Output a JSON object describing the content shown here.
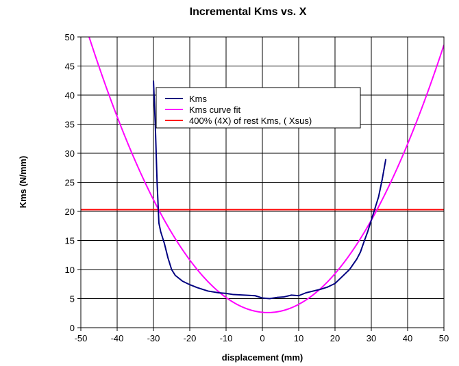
{
  "chart_data": {
    "type": "line",
    "title": "Incremental Kms vs. X",
    "xlabel": "displacement (mm)",
    "ylabel": "Kms (N/mm)",
    "xlim": [
      -50,
      50
    ],
    "ylim": [
      0,
      50
    ],
    "x_ticks": [
      "-50",
      "-40",
      "-30",
      "-20",
      "-10",
      "0",
      "10",
      "20",
      "30",
      "40",
      "50"
    ],
    "y_ticks": [
      "0",
      "5",
      "10",
      "15",
      "20",
      "25",
      "30",
      "35",
      "40",
      "45",
      "50"
    ],
    "grid": true,
    "legend_position": "top-center",
    "colors": {
      "kms": "#000080",
      "fit": "#ff00ff",
      "limit": "#ff0000",
      "grid": "#000000"
    },
    "series": [
      {
        "name": "Kms",
        "color": "#000080",
        "points": [
          [
            -30,
            42.5
          ],
          [
            -29.5,
            35
          ],
          [
            -29,
            25
          ],
          [
            -28.5,
            18
          ],
          [
            -28,
            16.5
          ],
          [
            -27.5,
            15.5
          ],
          [
            -27,
            14.5
          ],
          [
            -26,
            12
          ],
          [
            -25,
            10
          ],
          [
            -24,
            9
          ],
          [
            -22,
            8
          ],
          [
            -20,
            7.4
          ],
          [
            -18,
            6.9
          ],
          [
            -15,
            6.3
          ],
          [
            -12,
            6.0
          ],
          [
            -10,
            5.9
          ],
          [
            -8,
            5.7
          ],
          [
            -5,
            5.6
          ],
          [
            -2,
            5.5
          ],
          [
            0,
            5.1
          ],
          [
            2,
            5.0
          ],
          [
            4,
            5.2
          ],
          [
            6,
            5.3
          ],
          [
            8,
            5.6
          ],
          [
            10,
            5.5
          ],
          [
            12,
            6.0
          ],
          [
            14,
            6.3
          ],
          [
            16,
            6.6
          ],
          [
            18,
            7.0
          ],
          [
            20,
            7.6
          ],
          [
            22,
            8.8
          ],
          [
            24,
            10
          ],
          [
            26,
            11.8
          ],
          [
            27,
            13
          ],
          [
            28,
            14.8
          ],
          [
            29,
            16.5
          ],
          [
            30,
            18.5
          ],
          [
            31,
            20.5
          ],
          [
            32,
            22.5
          ],
          [
            33,
            25.5
          ],
          [
            34,
            29
          ]
        ]
      },
      {
        "name": "Kms curve fit",
        "color": "#ff00ff",
        "function": {
          "a": 0.01956,
          "vertex_x": 1.5,
          "vertex_y": 2.6
        }
      },
      {
        "name": "400% (4X) of rest Kms, ( Xsus)",
        "color": "#ff0000",
        "constant_y": 20.3
      }
    ]
  }
}
